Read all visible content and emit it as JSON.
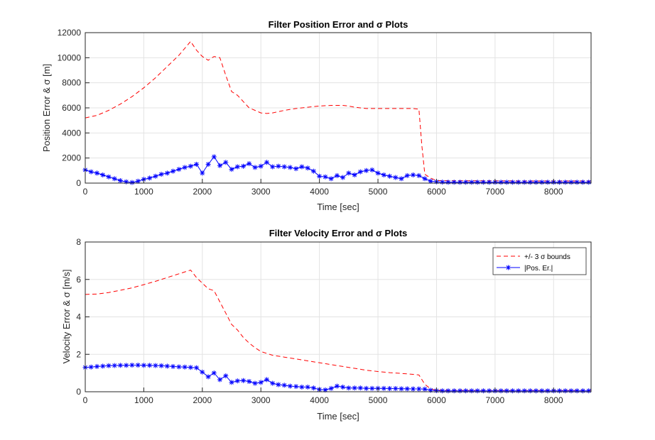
{
  "chart_data": [
    {
      "type": "line",
      "title": "Filter Position Error and σ Plots",
      "xlabel": "Time [sec]",
      "ylabel": "Position Error & σ [m]",
      "xlim": [
        0,
        8640
      ],
      "ylim": [
        0,
        12000
      ],
      "xticks": [
        0,
        1000,
        2000,
        3000,
        4000,
        5000,
        6000,
        7000,
        8000
      ],
      "yticks": [
        0,
        2000,
        4000,
        6000,
        8000,
        10000,
        12000
      ],
      "xtick_labels": [
        "0",
        "1000",
        "2000",
        "3000",
        "4000",
        "5000",
        "6000",
        "7000",
        "8000"
      ],
      "ytick_labels": [
        "0",
        "2000",
        "4000",
        "6000",
        "8000",
        "10000",
        "12000"
      ],
      "grid": true,
      "series": [
        {
          "name": "+/- 3 σ bounds",
          "color": "#ff0000",
          "style": "dashed",
          "x": [
            0,
            200,
            400,
            600,
            800,
            1000,
            1200,
            1400,
            1600,
            1800,
            1900,
            2000,
            2100,
            2200,
            2300,
            2400,
            2500,
            2600,
            2700,
            2800,
            2900,
            3000,
            3100,
            3200,
            3400,
            3600,
            3800,
            4000,
            4200,
            4400,
            4500,
            4600,
            4800,
            5000,
            5200,
            5400,
            5600,
            5700,
            5750,
            5800,
            5900,
            6000,
            6500,
            7000,
            7500,
            8000,
            8640
          ],
          "y": [
            5200,
            5400,
            5800,
            6300,
            6900,
            7600,
            8400,
            9300,
            10200,
            11300,
            10600,
            10100,
            9800,
            10100,
            10000,
            8600,
            7300,
            7000,
            6500,
            6000,
            5800,
            5600,
            5550,
            5600,
            5800,
            5950,
            6050,
            6150,
            6200,
            6200,
            6150,
            6050,
            5950,
            5950,
            5950,
            5950,
            5950,
            5900,
            3000,
            700,
            400,
            200,
            180,
            180,
            170,
            170,
            170
          ]
        },
        {
          "name": "|Pos. Er.|",
          "color": "#0000ff",
          "style": "solid-star",
          "x": [
            0,
            100,
            200,
            300,
            400,
            500,
            600,
            700,
            800,
            900,
            1000,
            1100,
            1200,
            1300,
            1400,
            1500,
            1600,
            1700,
            1800,
            1900,
            2000,
            2100,
            2200,
            2300,
            2400,
            2500,
            2600,
            2700,
            2800,
            2900,
            3000,
            3100,
            3200,
            3300,
            3400,
            3500,
            3600,
            3700,
            3800,
            3900,
            4000,
            4100,
            4200,
            4300,
            4400,
            4500,
            4600,
            4700,
            4800,
            4900,
            5000,
            5100,
            5200,
            5300,
            5400,
            5500,
            5600,
            5700,
            5800,
            5900,
            6000,
            6100,
            6200,
            6300,
            6400,
            6500,
            6600,
            6700,
            6800,
            6900,
            7000,
            7100,
            7200,
            7300,
            7400,
            7500,
            7600,
            7700,
            7800,
            7900,
            8000,
            8100,
            8200,
            8300,
            8400,
            8500,
            8600
          ],
          "y": [
            1050,
            900,
            800,
            650,
            500,
            350,
            200,
            100,
            50,
            150,
            300,
            400,
            550,
            700,
            800,
            950,
            1100,
            1250,
            1350,
            1500,
            800,
            1500,
            2100,
            1400,
            1650,
            1100,
            1300,
            1350,
            1550,
            1250,
            1350,
            1650,
            1300,
            1350,
            1300,
            1250,
            1150,
            1300,
            1200,
            950,
            550,
            500,
            350,
            600,
            450,
            800,
            650,
            900,
            1000,
            1050,
            800,
            650,
            550,
            450,
            350,
            600,
            650,
            600,
            350,
            150,
            100,
            80,
            70,
            70,
            70,
            70,
            70,
            70,
            70,
            70,
            70,
            70,
            70,
            70,
            70,
            70,
            70,
            70,
            70,
            70,
            70,
            70,
            70,
            70,
            70,
            70,
            70
          ]
        }
      ]
    },
    {
      "type": "line",
      "title": "Filter Velocity Error and σ Plots",
      "xlabel": "Time [sec]",
      "ylabel": "Velocity Error & σ [m/s]",
      "xlim": [
        0,
        8640
      ],
      "ylim": [
        0,
        8
      ],
      "xticks": [
        0,
        1000,
        2000,
        3000,
        4000,
        5000,
        6000,
        7000,
        8000
      ],
      "yticks": [
        0,
        2,
        4,
        6,
        8
      ],
      "xtick_labels": [
        "0",
        "1000",
        "2000",
        "3000",
        "4000",
        "5000",
        "6000",
        "7000",
        "8000"
      ],
      "ytick_labels": [
        "0",
        "2",
        "4",
        "6",
        "8"
      ],
      "grid": true,
      "legend": "top-right",
      "series": [
        {
          "name": "+/- 3 σ bounds",
          "color": "#ff0000",
          "style": "dashed",
          "x": [
            0,
            200,
            400,
            600,
            800,
            1000,
            1200,
            1400,
            1600,
            1800,
            1900,
            2000,
            2100,
            2200,
            2300,
            2400,
            2500,
            2600,
            2700,
            2800,
            2900,
            3000,
            3200,
            3400,
            3600,
            3800,
            4000,
            4200,
            4400,
            4600,
            4800,
            5000,
            5200,
            5400,
            5600,
            5700,
            5800,
            5900,
            6000,
            6500,
            7000,
            7500,
            8000,
            8640
          ],
          "y": [
            5.2,
            5.22,
            5.3,
            5.42,
            5.55,
            5.72,
            5.9,
            6.1,
            6.3,
            6.5,
            6.1,
            5.8,
            5.5,
            5.4,
            4.8,
            4.2,
            3.6,
            3.3,
            2.9,
            2.6,
            2.35,
            2.15,
            1.95,
            1.85,
            1.75,
            1.65,
            1.55,
            1.45,
            1.35,
            1.25,
            1.15,
            1.08,
            1.02,
            0.98,
            0.93,
            0.9,
            0.4,
            0.15,
            0.08,
            0.07,
            0.07,
            0.07,
            0.07,
            0.07
          ]
        },
        {
          "name": "|Pos. Er.|",
          "color": "#0000ff",
          "style": "solid-star",
          "x": [
            0,
            100,
            200,
            300,
            400,
            500,
            600,
            700,
            800,
            900,
            1000,
            1100,
            1200,
            1300,
            1400,
            1500,
            1600,
            1700,
            1800,
            1900,
            2000,
            2100,
            2200,
            2300,
            2400,
            2500,
            2600,
            2700,
            2800,
            2900,
            3000,
            3100,
            3200,
            3300,
            3400,
            3500,
            3600,
            3700,
            3800,
            3900,
            4000,
            4100,
            4200,
            4300,
            4400,
            4500,
            4600,
            4700,
            4800,
            4900,
            5000,
            5100,
            5200,
            5300,
            5400,
            5500,
            5600,
            5700,
            5800,
            5900,
            6000,
            6100,
            6200,
            6300,
            6400,
            6500,
            6600,
            6700,
            6800,
            6900,
            7000,
            7100,
            7200,
            7300,
            7400,
            7500,
            7600,
            7700,
            7800,
            7900,
            8000,
            8100,
            8200,
            8300,
            8400,
            8500,
            8600
          ],
          "y": [
            1.3,
            1.32,
            1.35,
            1.37,
            1.39,
            1.4,
            1.41,
            1.41,
            1.42,
            1.42,
            1.41,
            1.41,
            1.4,
            1.39,
            1.37,
            1.35,
            1.33,
            1.32,
            1.3,
            1.28,
            1.05,
            0.8,
            1.0,
            0.65,
            0.85,
            0.5,
            0.58,
            0.6,
            0.55,
            0.45,
            0.5,
            0.65,
            0.45,
            0.38,
            0.35,
            0.3,
            0.28,
            0.25,
            0.25,
            0.2,
            0.12,
            0.1,
            0.18,
            0.3,
            0.25,
            0.2,
            0.2,
            0.2,
            0.18,
            0.18,
            0.18,
            0.18,
            0.17,
            0.17,
            0.16,
            0.16,
            0.15,
            0.15,
            0.14,
            0.08,
            0.06,
            0.05,
            0.05,
            0.05,
            0.05,
            0.05,
            0.05,
            0.05,
            0.05,
            0.05,
            0.05,
            0.05,
            0.05,
            0.05,
            0.05,
            0.05,
            0.05,
            0.05,
            0.05,
            0.05,
            0.05,
            0.05,
            0.05,
            0.05,
            0.05,
            0.05,
            0.05
          ]
        }
      ]
    }
  ]
}
